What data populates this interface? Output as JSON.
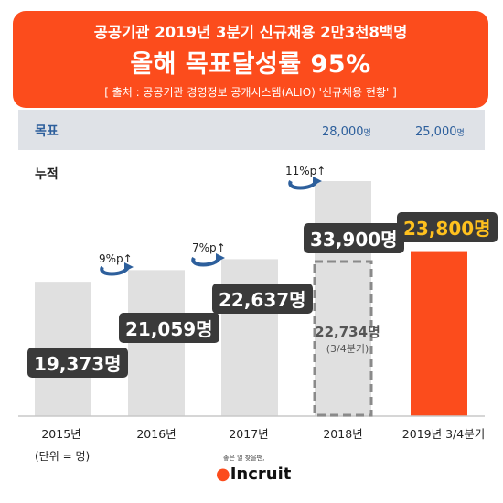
{
  "header": {
    "line1": "공공기관 2019년 3분기 신규채용 2만3천8백명",
    "line2": "올해 목표달성률 95%",
    "source": "[ 출처 : 공공기관 경영정보 공개시스템(ALIO) '신규채용 현황' ]"
  },
  "goal": {
    "label": "목표",
    "values": [
      "28,000",
      "25,000"
    ],
    "unit": "명"
  },
  "cumulative_label": "누적",
  "unit_note": "(단위 = 명)",
  "logo": {
    "tagline": "좋은 일 찾을땐,",
    "name": "Incruit"
  },
  "colors": {
    "accent": "#fc4c1c",
    "bar": "#e0e0e0",
    "highlight": "#ffc11e",
    "label_bg": "#3a3a3a"
  },
  "chart_data": {
    "type": "bar",
    "categories": [
      "2015년",
      "2016년",
      "2017년",
      "2018년",
      "2019년 3/4분기"
    ],
    "values": [
      19373,
      21059,
      22637,
      33900,
      23800
    ],
    "value_labels": [
      "19,373명",
      "21,059명",
      "22,637명",
      "33,900명",
      "23,800명"
    ],
    "ylim": [
      0,
      38000
    ],
    "grid": false,
    "growth_labels": [
      "9%p↑",
      "7%p↑",
      "11%p↑"
    ],
    "partial_2018": {
      "value": 22734,
      "label": "22,734명",
      "sublabel": "(3/4분기)"
    },
    "targets": [
      {
        "category": "2018년",
        "value": 28000
      },
      {
        "category": "2019년 3/4분기",
        "value": 25000
      }
    ]
  }
}
